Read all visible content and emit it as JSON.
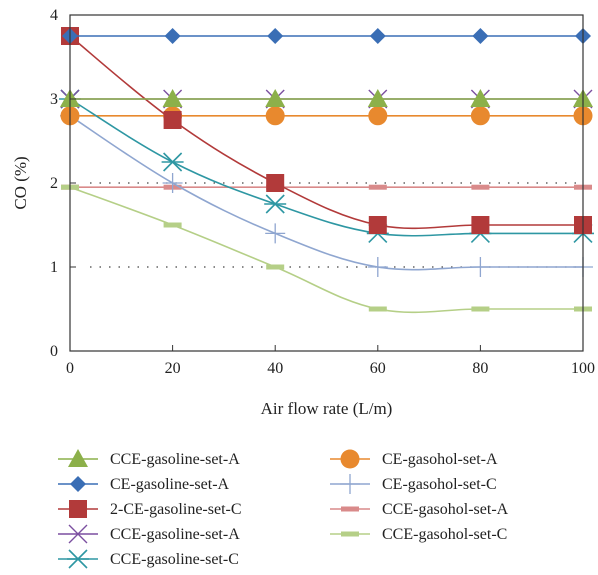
{
  "chart_data": {
    "type": "line",
    "title": "",
    "xlabel": "Air flow rate (L/m)",
    "ylabel": "CO (%)",
    "xlim": [
      0,
      100
    ],
    "ylim": [
      0,
      4
    ],
    "xticks": [
      0,
      20,
      40,
      60,
      80,
      100
    ],
    "yticks": [
      0,
      1,
      2,
      3,
      4
    ],
    "x": [
      0,
      20,
      40,
      60,
      80,
      100
    ],
    "grid": false,
    "reference_lines": [
      1,
      2
    ],
    "legend_position": "bottom",
    "series": [
      {
        "name": "CCE-gasoline-set-A",
        "color": "#8cb04a",
        "marker": "triangle",
        "values": [
          3.0,
          3.0,
          3.0,
          3.0,
          3.0,
          3.0
        ]
      },
      {
        "name": "CE-gasoline-set-A",
        "color": "#3a6eb5",
        "marker": "diamond",
        "values": [
          3.75,
          3.75,
          3.75,
          3.75,
          3.75,
          3.75
        ]
      },
      {
        "name": "2-CE-gasoline-set-C",
        "color": "#b23a3a",
        "marker": "square",
        "values": [
          3.75,
          2.75,
          2.0,
          1.5,
          1.5,
          1.5
        ]
      },
      {
        "name": "CCE-gasoline-set-A",
        "color": "#7b4fa0",
        "marker": "x",
        "values": [
          3.0,
          3.0,
          3.0,
          3.0,
          3.0,
          3.0
        ]
      },
      {
        "name": "CCE-gasoline-set-C",
        "color": "#2e97a3",
        "marker": "asterisk",
        "values": [
          3.0,
          2.25,
          1.75,
          1.4,
          1.4,
          1.4
        ]
      },
      {
        "name": "CE-gasohol-set-A",
        "color": "#e8892e",
        "marker": "circle",
        "values": [
          2.8,
          2.8,
          2.8,
          2.8,
          2.8,
          2.8
        ]
      },
      {
        "name": "CE-gasohol-set-C",
        "color": "#8fa6d0",
        "marker": "plus",
        "values": [
          2.8,
          2.0,
          1.4,
          1.0,
          1.0,
          1.0
        ]
      },
      {
        "name": "CCE-gasohol-set-A",
        "color": "#d98a8a",
        "marker": "dash",
        "values": [
          1.95,
          1.95,
          1.95,
          1.95,
          1.95,
          1.95
        ]
      },
      {
        "name": "CCE-gasohol-set-C",
        "color": "#b5cf87",
        "marker": "dash",
        "values": [
          1.95,
          1.5,
          1.0,
          0.5,
          0.5,
          0.5
        ]
      }
    ]
  }
}
